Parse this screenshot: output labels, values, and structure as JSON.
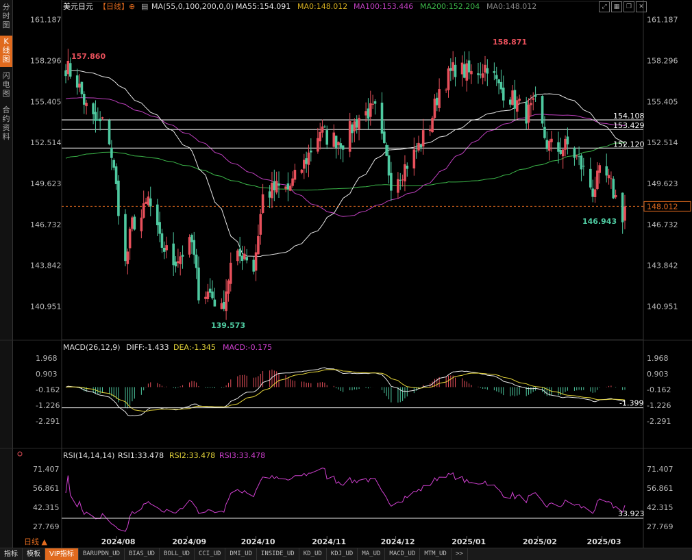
{
  "sidebar": {
    "tabs": [
      {
        "label": "分时图",
        "active": false
      },
      {
        "label": "K线图",
        "active": true
      },
      {
        "label": "闪电图",
        "active": false
      },
      {
        "label": "合约资料",
        "active": false
      }
    ]
  },
  "header": {
    "symbol": "美元日元",
    "period_tag": "【日线】",
    "ma_label": "MA(55,0,100,200,0,0)",
    "ma55": "MA55:154.091",
    "ma0": "MA0:148.012",
    "ma100": "MA100:153.446",
    "ma200": "MA200:152.204",
    "ma0b": "MA0:148.012",
    "toolbar_icons": [
      "expand-icon",
      "grid-icon",
      "window-icon",
      "close-icon"
    ]
  },
  "price_axis": {
    "ticks": [
      "161.187",
      "158.296",
      "155.405",
      "152.514",
      "149.623",
      "146.732",
      "143.842",
      "140.951"
    ],
    "current_price": "148.012",
    "current_value": 148.012,
    "high_label": "158.871",
    "left_high_label": "157.860",
    "low_label": "139.573",
    "recent_low_label": "146.943",
    "levels": [
      {
        "value": 154.108,
        "label": "154.108"
      },
      {
        "value": 153.429,
        "label": "153.429"
      },
      {
        "value": 152.12,
        "label": "152.120"
      }
    ]
  },
  "macd": {
    "title": "MACD(26,12,9)",
    "diff": "DIFF:-1.433",
    "dea": "DEA:-1.345",
    "macd": "MACD:-0.175",
    "ticks": [
      "1.968",
      "0.903",
      "-0.162",
      "-1.226",
      "-2.291"
    ],
    "level_label": "-1.399",
    "level_value": -1.399
  },
  "rsi": {
    "title": "RSI(14,14,14)",
    "rsi1": "RSI1:33.478",
    "rsi2": "RSI2:33.478",
    "rsi3": "RSI3:33.478",
    "ticks": [
      "71.407",
      "56.861",
      "42.315",
      "27.769"
    ],
    "level_label": "33.923",
    "level_value": 33.923
  },
  "x_axis": {
    "period_label": "日线 ▲",
    "months": [
      "2024/08",
      "2024/09",
      "2024/10",
      "2024/11",
      "2024/12",
      "2025/01",
      "2025/02",
      "2025/03"
    ]
  },
  "bottom_tabs": [
    {
      "label": "指标",
      "active": false,
      "small": false
    },
    {
      "label": "模板",
      "active": false,
      "small": false
    },
    {
      "label": "VIP指标",
      "active": true,
      "small": false
    },
    {
      "label": "BARUPDN_UD",
      "active": false,
      "small": true
    },
    {
      "label": "BIAS_UD",
      "active": false,
      "small": true
    },
    {
      "label": "BOLL_UD",
      "active": false,
      "small": true
    },
    {
      "label": "CCI_UD",
      "active": false,
      "small": true
    },
    {
      "label": "DMI_UD",
      "active": false,
      "small": true
    },
    {
      "label": "INSIDE_UD",
      "active": false,
      "small": true
    },
    {
      "label": "KD_UD",
      "active": false,
      "small": true
    },
    {
      "label": "KDJ_UD",
      "active": false,
      "small": true
    },
    {
      "label": "MA_UD",
      "active": false,
      "small": true
    },
    {
      "label": "MACD_UD",
      "active": false,
      "small": true
    },
    {
      "label": "MTM_UD",
      "active": false,
      "small": true
    },
    {
      "label": ">>",
      "active": false,
      "small": true
    }
  ],
  "colors": {
    "up": "#e8505b",
    "down": "#4ec9a0",
    "ma55": "#e8e8e8",
    "ma100": "#c040c0",
    "ma200": "#3cb84a",
    "ma0": "#d8b020",
    "accent": "#e06a1e",
    "dea": "#e6d63a",
    "rsi": "#d040d0"
  },
  "chart_data": {
    "type": "candlestick",
    "title": "美元日元 日线",
    "y_ticks": [
      161.187,
      158.296,
      155.405,
      152.514,
      149.623,
      146.732,
      143.842,
      140.951
    ],
    "ylim": [
      139.0,
      161.6
    ],
    "x_months": [
      "2024/08",
      "2024/09",
      "2024/10",
      "2024/11",
      "2024/12",
      "2025/01",
      "2025/02",
      "2025/03"
    ],
    "anchors": [
      {
        "date": "2024-07-10",
        "close": 157.9
      },
      {
        "date": "2024-07-15",
        "close": 156.8
      },
      {
        "date": "2024-07-20",
        "close": 154.5
      },
      {
        "date": "2024-07-24",
        "close": 153.8
      },
      {
        "date": "2024-07-28",
        "close": 153.9
      },
      {
        "date": "2024-08-01",
        "close": 149.3
      },
      {
        "date": "2024-08-05",
        "close": 143.9
      },
      {
        "date": "2024-08-08",
        "close": 146.8
      },
      {
        "date": "2024-08-12",
        "close": 147.2
      },
      {
        "date": "2024-08-15",
        "close": 148.5
      },
      {
        "date": "2024-08-20",
        "close": 145.5
      },
      {
        "date": "2024-08-26",
        "close": 144.1
      },
      {
        "date": "2024-09-03",
        "close": 145.4
      },
      {
        "date": "2024-09-06",
        "close": 142.0
      },
      {
        "date": "2024-09-11",
        "close": 141.9
      },
      {
        "date": "2024-09-16",
        "close": 140.6
      },
      {
        "date": "2024-09-20",
        "close": 143.8
      },
      {
        "date": "2024-09-26",
        "close": 144.8
      },
      {
        "date": "2024-09-30",
        "close": 143.6
      },
      {
        "date": "2024-10-04",
        "close": 148.7
      },
      {
        "date": "2024-10-10",
        "close": 149.3
      },
      {
        "date": "2024-10-15",
        "close": 149.2
      },
      {
        "date": "2024-10-22",
        "close": 151.0
      },
      {
        "date": "2024-10-29",
        "close": 153.4
      },
      {
        "date": "2024-11-01",
        "close": 152.9
      },
      {
        "date": "2024-11-08",
        "close": 152.6
      },
      {
        "date": "2024-11-15",
        "close": 154.3
      },
      {
        "date": "2024-11-19",
        "close": 154.7
      },
      {
        "date": "2024-11-22",
        "close": 154.7
      },
      {
        "date": "2024-11-29",
        "close": 149.8
      },
      {
        "date": "2024-12-04",
        "close": 150.6
      },
      {
        "date": "2024-12-10",
        "close": 151.9
      },
      {
        "date": "2024-12-16",
        "close": 153.8
      },
      {
        "date": "2024-12-20",
        "close": 156.3
      },
      {
        "date": "2024-12-27",
        "close": 157.8
      },
      {
        "date": "2025-01-03",
        "close": 157.3
      },
      {
        "date": "2025-01-10",
        "close": 158.0
      },
      {
        "date": "2025-01-15",
        "close": 156.4
      },
      {
        "date": "2025-01-21",
        "close": 155.6
      },
      {
        "date": "2025-01-27",
        "close": 154.5
      },
      {
        "date": "2025-01-31",
        "close": 155.1
      },
      {
        "date": "2025-02-05",
        "close": 152.4
      },
      {
        "date": "2025-02-10",
        "close": 152.0
      },
      {
        "date": "2025-02-14",
        "close": 152.3
      },
      {
        "date": "2025-02-19",
        "close": 151.2
      },
      {
        "date": "2025-02-25",
        "close": 149.1
      },
      {
        "date": "2025-03-01",
        "close": 150.6
      },
      {
        "date": "2025-03-05",
        "close": 149.4
      },
      {
        "date": "2025-03-10",
        "close": 147.4
      },
      {
        "date": "2025-03-11",
        "close": 148.012
      }
    ],
    "horizontal_levels": [
      154.108,
      153.429,
      152.12
    ],
    "macd_ylim": [
      -2.9,
      2.2
    ],
    "rsi_ylim": [
      22,
      76
    ]
  }
}
